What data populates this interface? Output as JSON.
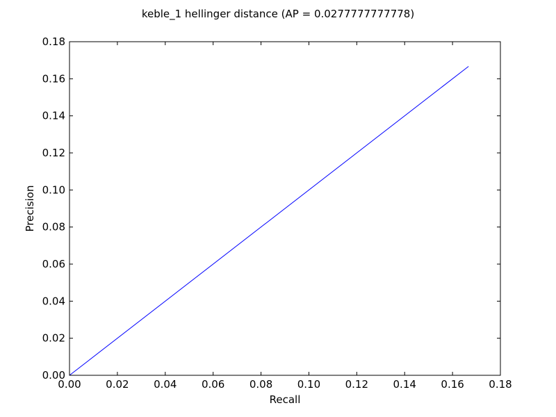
{
  "chart_data": {
    "type": "line",
    "title": "keble_1 hellinger distance  (AP = 0.0277777777778)",
    "xlabel": "Recall",
    "ylabel": "Precision",
    "xlim": [
      0.0,
      0.18
    ],
    "ylim": [
      0.0,
      0.18
    ],
    "xticks": [
      "0.00",
      "0.02",
      "0.04",
      "0.06",
      "0.08",
      "0.10",
      "0.12",
      "0.14",
      "0.16",
      "0.18"
    ],
    "yticks": [
      "0.00",
      "0.02",
      "0.04",
      "0.06",
      "0.08",
      "0.10",
      "0.12",
      "0.14",
      "0.16",
      "0.18"
    ],
    "grid": false,
    "series": [
      {
        "color": "#0000ff",
        "x": [
          0.0,
          0.1667
        ],
        "y": [
          0.0,
          0.1667
        ]
      }
    ]
  }
}
